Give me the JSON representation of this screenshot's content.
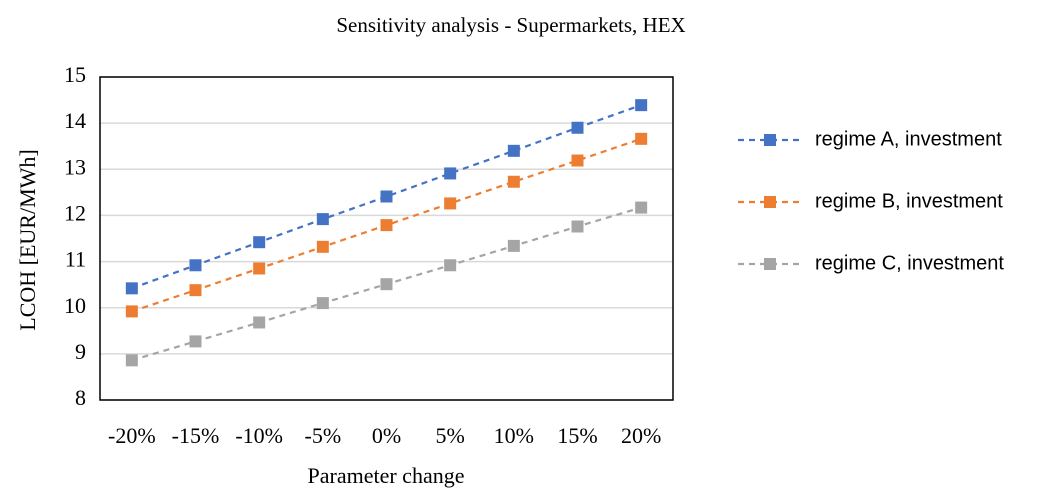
{
  "chart_data": {
    "type": "line",
    "title": "Sensitivity analysis - Supermarkets, HEX",
    "x_label": "Parameter change",
    "y_label": "LCOH [EUR/MWh]",
    "categories": [
      "-20%",
      "-15%",
      "-10%",
      "-5%",
      "0%",
      "5%",
      "10%",
      "15%",
      "20%"
    ],
    "series": [
      {
        "name": "regime A, investment",
        "color": "#4472c4",
        "values": [
          10.42,
          10.92,
          11.42,
          11.92,
          12.41,
          12.91,
          13.4,
          13.9,
          14.39
        ]
      },
      {
        "name": "regime B, investment",
        "color": "#ed7d31",
        "values": [
          9.92,
          10.38,
          10.85,
          11.32,
          11.79,
          12.26,
          12.73,
          13.19,
          13.66
        ]
      },
      {
        "name": "regime C, investment",
        "color": "#a5a5a5",
        "values": [
          8.86,
          9.27,
          9.68,
          10.1,
          10.51,
          10.92,
          11.34,
          11.76,
          12.17
        ]
      }
    ],
    "ylim": [
      8,
      15
    ],
    "yticks": [
      8,
      9,
      10,
      11,
      12,
      13,
      14,
      15
    ],
    "grid": true,
    "legend": "right"
  }
}
